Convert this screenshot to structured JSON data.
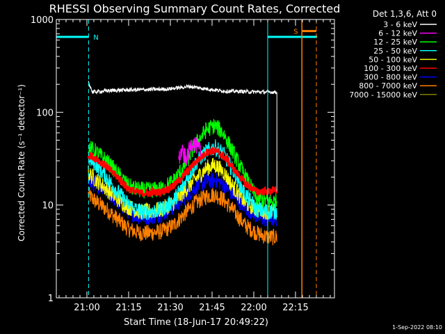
{
  "title": "RHESSI Observing Summary Count Rates, Corrected",
  "footer_date": "1-Sep-2022 08:10",
  "chart_data": {
    "type": "line",
    "title": "RHESSI Observing Summary Count Rates, Corrected",
    "xlabel": "Start Time (18-Jun-17 20:49:22)",
    "ylabel": "Corrected Count Rate (s⁻¹ detector⁻¹)",
    "y_scale": "log",
    "ylim": [
      1,
      1000
    ],
    "xlim_minutes_after_2049": [
      0,
      100
    ],
    "x_ticks": [
      {
        "label": "21:00",
        "min": 11
      },
      {
        "label": "21:15",
        "min": 26
      },
      {
        "label": "21:30",
        "min": 41
      },
      {
        "label": "21:45",
        "min": 56
      },
      {
        "label": "22:00",
        "min": 71
      },
      {
        "label": "22:15",
        "min": 86
      }
    ],
    "y_ticks": [
      {
        "label": "1",
        "value": 1
      },
      {
        "label": "10",
        "value": 10
      },
      {
        "label": "100",
        "value": 100
      },
      {
        "label": "1000",
        "value": 1000
      }
    ],
    "legend_header": "Det 1,3,6, Att 0",
    "legend_position": "right",
    "series": [
      {
        "name": "3 - 6 keV",
        "color": "#ffffff",
        "x": [
          11.5,
          13,
          20,
          30,
          40,
          48,
          52,
          58,
          62,
          66,
          70,
          77,
          79.3
        ],
        "y": [
          215,
          165,
          172,
          175,
          178,
          190,
          182,
          172,
          168,
          168,
          166,
          165,
          165
        ]
      },
      {
        "name": "6 - 12 keV",
        "color": "#ff00ff",
        "x": [
          44,
          45,
          46,
          47,
          48,
          49,
          50,
          51,
          52
        ],
        "y": [
          30,
          38,
          34,
          32,
          42,
          48,
          45,
          40,
          38
        ]
      },
      {
        "name": "12 - 25 keV",
        "color": "#00ff00",
        "x": [
          11.5,
          14,
          18,
          22,
          26,
          30,
          34,
          38,
          42,
          46,
          50,
          54,
          57,
          60,
          64,
          68,
          72,
          76,
          79.3
        ],
        "y": [
          42,
          38,
          30,
          22,
          16,
          14.5,
          14.5,
          15,
          18,
          26,
          45,
          65,
          72,
          60,
          35,
          20,
          12,
          11,
          11
        ]
      },
      {
        "name": "25 - 50 keV",
        "color": "#00ffff",
        "x": [
          11.5,
          14,
          18,
          22,
          26,
          30,
          34,
          38,
          42,
          46,
          50,
          54,
          57,
          60,
          64,
          68,
          72,
          76,
          79.3
        ],
        "y": [
          32,
          28,
          20,
          14,
          10,
          8.5,
          8.5,
          9,
          11,
          17,
          28,
          38,
          42,
          36,
          22,
          13,
          9,
          8.5,
          8.5
        ]
      },
      {
        "name": "50 - 100 keV",
        "color": "#ffff00",
        "x": [
          11.5,
          14,
          18,
          22,
          26,
          30,
          34,
          38,
          42,
          46,
          50,
          54,
          57,
          60,
          64,
          68,
          72,
          76,
          79.3
        ],
        "y": [
          22,
          19,
          15,
          11.5,
          9.5,
          8.5,
          8.5,
          9,
          10.5,
          14,
          19,
          25,
          27,
          23,
          15,
          10.5,
          9,
          8.5,
          8.5
        ]
      },
      {
        "name": "100 - 300 keV",
        "color": "#ff0000",
        "x": [
          11.5,
          14,
          18,
          22,
          26,
          30,
          34,
          38,
          42,
          46,
          50,
          54,
          57,
          60,
          64,
          68,
          72,
          76,
          79.3
        ],
        "y": [
          35,
          32,
          26,
          20,
          15,
          13.5,
          13.5,
          14,
          16,
          21,
          29,
          37,
          39,
          34,
          24,
          17,
          14,
          14,
          14.5
        ]
      },
      {
        "name": "300 - 800 keV",
        "color": "#0000ff",
        "x": [
          11.5,
          14,
          18,
          22,
          26,
          30,
          34,
          38,
          42,
          46,
          50,
          54,
          57,
          60,
          64,
          68,
          72,
          76,
          79.3
        ],
        "y": [
          18,
          16.5,
          14,
          11,
          8.5,
          7.5,
          7.5,
          8,
          9.5,
          12,
          15.5,
          18,
          18.5,
          17,
          12.5,
          9.5,
          7.5,
          7,
          7
        ]
      },
      {
        "name": "800 - 7000 keV",
        "color": "#ff8000",
        "x": [
          11.5,
          14,
          18,
          22,
          26,
          30,
          34,
          38,
          42,
          46,
          50,
          54,
          57,
          60,
          64,
          68,
          72,
          76,
          79.3
        ],
        "y": [
          13,
          11,
          9,
          7,
          5.5,
          5,
          5,
          5.2,
          6,
          8,
          10.5,
          12.5,
          13,
          11.5,
          8.5,
          6,
          5,
          4.5,
          4.5
        ]
      },
      {
        "name": "7000 - 15000 keV",
        "color": "#808000",
        "x": [],
        "y": []
      }
    ],
    "annotations": [
      {
        "label": "N",
        "color": "#00ffff",
        "x_min": 17.5,
        "text": "N"
      },
      {
        "label": "S",
        "color": "#ff8000",
        "x_min": 88.3,
        "text": "S"
      }
    ]
  }
}
